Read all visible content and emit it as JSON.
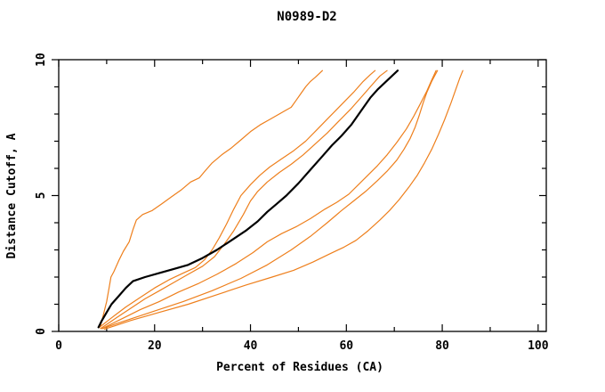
{
  "chart_data": {
    "type": "line",
    "title": "N0989-D2",
    "xlabel": "Percent of Residues (CA)",
    "ylabel": "Distance Cutoff, A",
    "xlim": [
      0,
      101.7
    ],
    "ylim": [
      0,
      10
    ],
    "grid": false,
    "legend": null,
    "x_major_ticks": [
      0,
      20,
      40,
      60,
      80,
      100
    ],
    "x_minor_ticks": [
      10,
      30,
      50,
      70,
      90
    ],
    "x_tick_labels": [
      "0",
      "20",
      "40",
      "60",
      "80",
      "100"
    ],
    "y_major_ticks": [
      0,
      5,
      10
    ],
    "y_minor_ticks": [
      1,
      2,
      3,
      4,
      6,
      7,
      8,
      9
    ],
    "y_tick_labels": [
      "0",
      "5",
      "10"
    ],
    "colors": {
      "main_model": "#000000",
      "other_models": "#ee7f1c"
    },
    "series": [
      {
        "name": "orange-model-1",
        "color": "#ee7f1c",
        "width": 1.2,
        "points": [
          [
            8.7,
            0.2
          ],
          [
            9.3,
            0.6
          ],
          [
            10,
            1.1
          ],
          [
            10.5,
            1.6
          ],
          [
            10.9,
            2.0
          ],
          [
            11.5,
            2.2
          ],
          [
            12.5,
            2.6
          ],
          [
            13.5,
            2.95
          ],
          [
            14.7,
            3.3
          ],
          [
            15.5,
            3.75
          ],
          [
            16.2,
            4.1
          ],
          [
            17.5,
            4.3
          ],
          [
            19.5,
            4.45
          ],
          [
            21.5,
            4.7
          ],
          [
            23.5,
            4.95
          ],
          [
            25.5,
            5.2
          ],
          [
            27.5,
            5.5
          ],
          [
            29.3,
            5.65
          ],
          [
            30.5,
            5.9
          ],
          [
            32,
            6.2
          ],
          [
            34,
            6.5
          ],
          [
            36,
            6.75
          ],
          [
            38,
            7.05
          ],
          [
            40,
            7.35
          ],
          [
            42,
            7.6
          ],
          [
            44,
            7.8
          ],
          [
            45.5,
            7.95
          ],
          [
            47,
            8.1
          ],
          [
            48.5,
            8.25
          ],
          [
            49.5,
            8.5
          ],
          [
            50.5,
            8.75
          ],
          [
            51.5,
            9.0
          ],
          [
            52.5,
            9.2
          ],
          [
            53.5,
            9.35
          ],
          [
            55,
            9.6
          ]
        ]
      },
      {
        "name": "orange-model-2",
        "color": "#ee7f1c",
        "width": 1.2,
        "points": [
          [
            8.5,
            0.15
          ],
          [
            11,
            0.5
          ],
          [
            14,
            0.9
          ],
          [
            17,
            1.25
          ],
          [
            20,
            1.6
          ],
          [
            23,
            1.9
          ],
          [
            26,
            2.15
          ],
          [
            28.5,
            2.35
          ],
          [
            30.5,
            2.65
          ],
          [
            32,
            3.0
          ],
          [
            33.5,
            3.45
          ],
          [
            35,
            3.95
          ],
          [
            36.5,
            4.5
          ],
          [
            38,
            5.0
          ],
          [
            40,
            5.4
          ],
          [
            42,
            5.75
          ],
          [
            44,
            6.05
          ],
          [
            46.5,
            6.35
          ],
          [
            49,
            6.65
          ],
          [
            51.5,
            7.0
          ],
          [
            54,
            7.45
          ],
          [
            56.5,
            7.9
          ],
          [
            59,
            8.35
          ],
          [
            61.5,
            8.8
          ],
          [
            63.5,
            9.2
          ],
          [
            65,
            9.45
          ],
          [
            66,
            9.6
          ]
        ]
      },
      {
        "name": "orange-model-3",
        "color": "#ee7f1c",
        "width": 1.2,
        "points": [
          [
            8.7,
            0.1
          ],
          [
            12,
            0.5
          ],
          [
            15,
            0.85
          ],
          [
            18,
            1.2
          ],
          [
            21,
            1.5
          ],
          [
            24,
            1.8
          ],
          [
            27,
            2.1
          ],
          [
            30,
            2.4
          ],
          [
            32.5,
            2.75
          ],
          [
            34.5,
            3.2
          ],
          [
            36.5,
            3.7
          ],
          [
            38.5,
            4.3
          ],
          [
            40,
            4.8
          ],
          [
            41.5,
            5.15
          ],
          [
            43.5,
            5.5
          ],
          [
            46,
            5.85
          ],
          [
            48.5,
            6.15
          ],
          [
            51,
            6.5
          ],
          [
            53.5,
            6.9
          ],
          [
            56,
            7.3
          ],
          [
            58.5,
            7.75
          ],
          [
            61,
            8.2
          ],
          [
            63.5,
            8.7
          ],
          [
            65.5,
            9.1
          ],
          [
            67,
            9.4
          ],
          [
            68.5,
            9.6
          ]
        ]
      },
      {
        "name": "orange-model-4",
        "color": "#ee7f1c",
        "width": 1.2,
        "points": [
          [
            9,
            0.1
          ],
          [
            13,
            0.45
          ],
          [
            17,
            0.8
          ],
          [
            21,
            1.1
          ],
          [
            25,
            1.45
          ],
          [
            29,
            1.75
          ],
          [
            33,
            2.1
          ],
          [
            37,
            2.5
          ],
          [
            40.5,
            2.9
          ],
          [
            43.5,
            3.3
          ],
          [
            46.5,
            3.6
          ],
          [
            49.5,
            3.85
          ],
          [
            52.5,
            4.15
          ],
          [
            55.5,
            4.5
          ],
          [
            58,
            4.75
          ],
          [
            60.5,
            5.05
          ],
          [
            62.5,
            5.4
          ],
          [
            64.5,
            5.75
          ],
          [
            66.5,
            6.1
          ],
          [
            68.5,
            6.5
          ],
          [
            70.5,
            6.95
          ],
          [
            72.5,
            7.45
          ],
          [
            74,
            7.9
          ],
          [
            75.5,
            8.4
          ],
          [
            76.8,
            8.85
          ],
          [
            77.8,
            9.25
          ],
          [
            78.7,
            9.6
          ]
        ]
      },
      {
        "name": "orange-model-5",
        "color": "#ee7f1c",
        "width": 1.2,
        "points": [
          [
            9,
            0.1
          ],
          [
            14,
            0.4
          ],
          [
            20,
            0.75
          ],
          [
            26,
            1.1
          ],
          [
            32,
            1.5
          ],
          [
            38,
            1.95
          ],
          [
            43.5,
            2.45
          ],
          [
            48.5,
            3.0
          ],
          [
            52.5,
            3.5
          ],
          [
            56,
            4.0
          ],
          [
            59,
            4.45
          ],
          [
            61.5,
            4.8
          ],
          [
            64,
            5.15
          ],
          [
            66.5,
            5.55
          ],
          [
            68.5,
            5.9
          ],
          [
            70.5,
            6.3
          ],
          [
            72,
            6.7
          ],
          [
            73.3,
            7.1
          ],
          [
            74.3,
            7.5
          ],
          [
            75.2,
            7.95
          ],
          [
            76,
            8.4
          ],
          [
            76.8,
            8.8
          ],
          [
            77.8,
            9.2
          ],
          [
            79,
            9.6
          ]
        ]
      },
      {
        "name": "orange-model-6",
        "color": "#ee7f1c",
        "width": 1.2,
        "points": [
          [
            9.5,
            0.08
          ],
          [
            15,
            0.4
          ],
          [
            21,
            0.7
          ],
          [
            27,
            1.0
          ],
          [
            33,
            1.35
          ],
          [
            39,
            1.7
          ],
          [
            44.5,
            2.0
          ],
          [
            49,
            2.25
          ],
          [
            53,
            2.55
          ],
          [
            56.5,
            2.85
          ],
          [
            59.5,
            3.1
          ],
          [
            62,
            3.35
          ],
          [
            64.5,
            3.7
          ],
          [
            67,
            4.1
          ],
          [
            69,
            4.45
          ],
          [
            71,
            4.85
          ],
          [
            73,
            5.3
          ],
          [
            74.8,
            5.75
          ],
          [
            76.3,
            6.2
          ],
          [
            77.8,
            6.7
          ],
          [
            79.2,
            7.25
          ],
          [
            80.5,
            7.8
          ],
          [
            81.8,
            8.4
          ],
          [
            82.8,
            8.9
          ],
          [
            83.6,
            9.3
          ],
          [
            84.3,
            9.6
          ]
        ]
      },
      {
        "name": "black-main-model",
        "color": "#000000",
        "width": 2.2,
        "points": [
          [
            8.3,
            0.15
          ],
          [
            9,
            0.4
          ],
          [
            10,
            0.7
          ],
          [
            11,
            1.0
          ],
          [
            12.5,
            1.3
          ],
          [
            14,
            1.6
          ],
          [
            15.5,
            1.85
          ],
          [
            18,
            2.0
          ],
          [
            21,
            2.15
          ],
          [
            24,
            2.3
          ],
          [
            27,
            2.45
          ],
          [
            30,
            2.7
          ],
          [
            33,
            3.0
          ],
          [
            36,
            3.35
          ],
          [
            39,
            3.7
          ],
          [
            41.5,
            4.05
          ],
          [
            43.5,
            4.4
          ],
          [
            45.5,
            4.7
          ],
          [
            47.5,
            5.0
          ],
          [
            50,
            5.45
          ],
          [
            52.5,
            5.95
          ],
          [
            55,
            6.45
          ],
          [
            57,
            6.85
          ],
          [
            59,
            7.2
          ],
          [
            61,
            7.6
          ],
          [
            63,
            8.1
          ],
          [
            65,
            8.6
          ],
          [
            66.5,
            8.9
          ],
          [
            68,
            9.15
          ],
          [
            69.5,
            9.4
          ],
          [
            70.7,
            9.6
          ]
        ]
      }
    ]
  }
}
